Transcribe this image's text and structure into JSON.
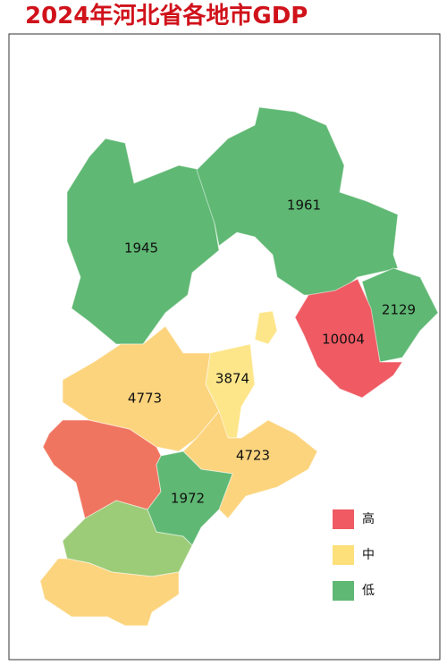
{
  "title": "2024年河北省各地市GDP",
  "regions": [
    {
      "value": 1945,
      "color": "#5fb873"
    },
    {
      "value": 1961,
      "color": "#5fb873"
    },
    {
      "value": 2129,
      "color": "#5fb873"
    },
    {
      "value": 10004,
      "color": "#ef5a63"
    },
    {
      "value": 3874,
      "color": "#fde68a"
    },
    {
      "value": 4773,
      "color": "#fcd47d"
    },
    {
      "value": 4723,
      "color": "#fcd47d"
    },
    {
      "value": 1972,
      "color": "#5fb873"
    }
  ],
  "legend": [
    {
      "label": "高",
      "color": "#ef5a63"
    },
    {
      "label": "中",
      "color": "#fde07a"
    },
    {
      "label": "低",
      "color": "#5fb873"
    }
  ]
}
